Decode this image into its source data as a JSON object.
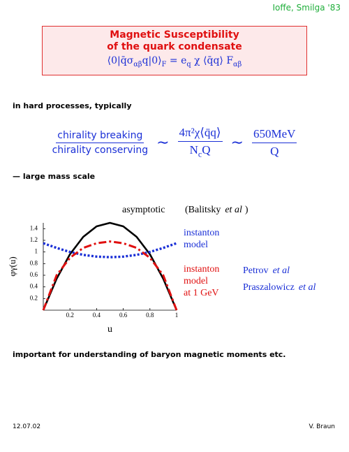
{
  "header": {
    "credit": "Ioffe, Smilga '83"
  },
  "title_box": {
    "lines": [
      "Magnetic Susceptibility",
      "of the quark condensate"
    ],
    "formula": [
      "⟨0|q̄σ",
      {
        "sub": "αβ"
      },
      "q|0⟩",
      {
        "sub": "F"
      },
      " = e",
      {
        "sub": "q"
      },
      " χ ⟨q̄q⟩ F",
      {
        "sub": "αβ"
      }
    ]
  },
  "intro": "in hard processes, typically",
  "relation": {
    "items": [
      {
        "numerator": [
          "chirality breaking"
        ],
        "denominator": [
          "chirality conserving"
        ]
      },
      {
        "symbol": "∼"
      },
      {
        "numerator": [
          "4π²χ⟨q̄q⟩"
        ],
        "denominator": [
          "N",
          {
            "sub": "c"
          },
          "Q"
        ]
      },
      {
        "symbol": "∼"
      },
      {
        "numerator": [
          "650MeV"
        ],
        "denominator": [
          "Q"
        ]
      }
    ]
  },
  "note": "— large mass scale",
  "chart_data": {
    "type": "line",
    "x": [
      0,
      0.1,
      0.2,
      0.3,
      0.4,
      0.5,
      0.6,
      0.7,
      0.8,
      0.9,
      1
    ],
    "series": [
      {
        "name": "asymptotic",
        "color": "#000000",
        "dash": "solid",
        "values": [
          0,
          0.54,
          0.96,
          1.26,
          1.44,
          1.5,
          1.44,
          1.26,
          0.96,
          0.54,
          0
        ]
      },
      {
        "name": "instanton\nmodel",
        "color": "#1a2fd6",
        "dash": "dotted",
        "values": [
          1.15,
          1.07,
          1.0,
          0.95,
          0.92,
          0.91,
          0.92,
          0.95,
          1.0,
          1.07,
          1.15
        ]
      },
      {
        "name": "instanton\nmodel\nat 1 GeV",
        "color": "#e01010",
        "dash": "dashdot",
        "values": [
          0,
          0.6,
          0.9,
          1.07,
          1.15,
          1.18,
          1.15,
          1.07,
          0.9,
          0.6,
          0
        ]
      }
    ],
    "citations": [
      [
        "(Balitsky",
        "et al",
        ")"
      ],
      [
        "Petrov",
        "et al"
      ],
      [
        "Praszalowicz",
        "et al"
      ]
    ],
    "xlabel": "u",
    "ylabel": "φγ(u)",
    "xlim": [
      0,
      1
    ],
    "ylim": [
      0,
      1.5
    ],
    "xticks": [
      0.2,
      0.4,
      0.6,
      0.8,
      1
    ],
    "yticks": [
      0.2,
      0.4,
      0.6,
      0.8,
      1,
      1.2,
      1.4
    ]
  },
  "closing": "important for understanding of baryon magnetic moments etc.",
  "footer": {
    "date": "12.07.02",
    "author": "V. Braun"
  }
}
